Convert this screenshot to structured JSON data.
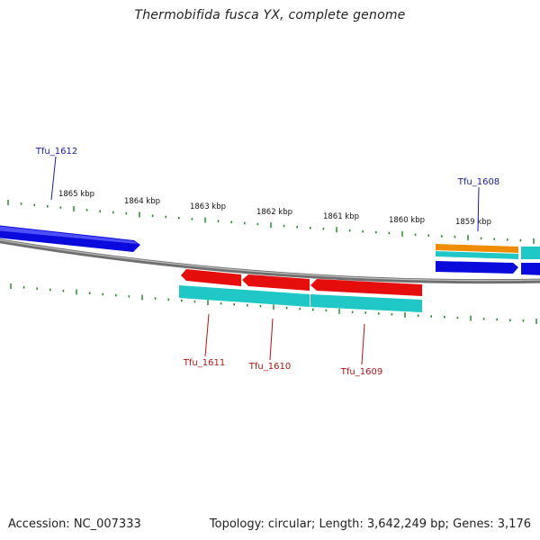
{
  "title": "Thermobifida fusca YX, complete genome",
  "accession": "Accession: NC_007333",
  "summary": "Topology: circular; Length: 3,642,249 bp; Genes: 3,176",
  "colors": {
    "backbone": "#8a8a8a",
    "tick": "#2e8b2e",
    "forward_gene": "#0a0adc",
    "reverse_gene": "#e60d0d",
    "cds": "#1fc7c7",
    "rna": "#f08c00",
    "forward_label": "#1a1aa8",
    "reverse_label": "#b31414"
  },
  "scale_labels": [
    "1865 kbp",
    "1864 kbp",
    "1863 kbp",
    "1862 kbp",
    "1861 kbp",
    "1860 kbp",
    "1859 kbp"
  ],
  "gene_labels": [
    {
      "id": "tfu-1612",
      "text": "Tfu_1612",
      "strand": "forward"
    },
    {
      "id": "tfu-1608",
      "text": "Tfu_1608",
      "strand": "forward"
    },
    {
      "id": "tfu-1611",
      "text": "Tfu_1611",
      "strand": "reverse"
    },
    {
      "id": "tfu-1610",
      "text": "Tfu_1610",
      "strand": "reverse"
    },
    {
      "id": "tfu-1609",
      "text": "Tfu_1609",
      "strand": "reverse"
    }
  ]
}
